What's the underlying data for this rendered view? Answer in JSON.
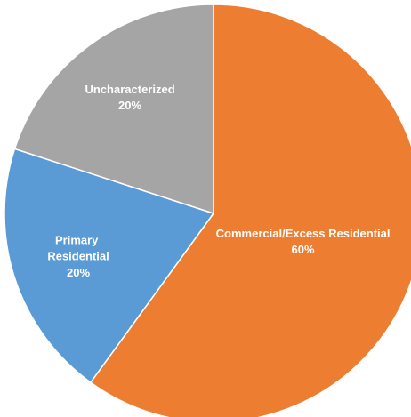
{
  "chart_data": {
    "type": "pie",
    "categories": [
      "Commercial/Excess Residential",
      "Primary Residential",
      "Uncharacterized"
    ],
    "values": [
      60,
      20,
      20
    ],
    "value_labels": [
      "60%",
      "20%",
      "20%"
    ],
    "colors": [
      "#ED7D31",
      "#5B9BD5",
      "#A5A5A5"
    ]
  }
}
